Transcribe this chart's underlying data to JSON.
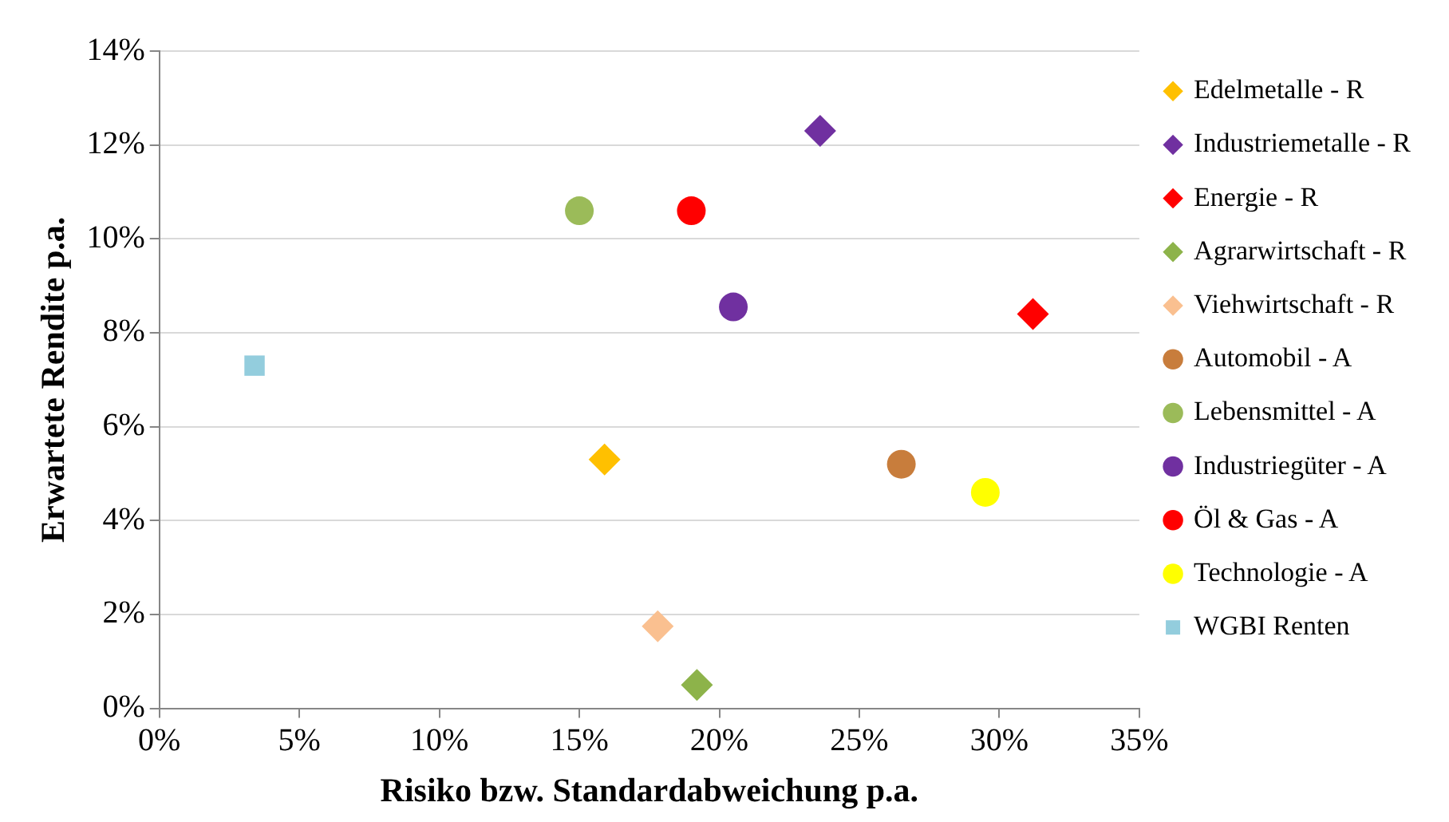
{
  "chart_data": {
    "type": "scatter",
    "xlabel": "Risiko bzw. Standardabweichung p.a.",
    "ylabel": "Erwartete Rendite p.a.",
    "xlim": [
      0,
      35
    ],
    "ylim": [
      0,
      14
    ],
    "xticks": [
      {
        "value": 0,
        "label": "0%"
      },
      {
        "value": 5,
        "label": "5%"
      },
      {
        "value": 10,
        "label": "10%"
      },
      {
        "value": 15,
        "label": "15%"
      },
      {
        "value": 20,
        "label": "20%"
      },
      {
        "value": 25,
        "label": "25%"
      },
      {
        "value": 30,
        "label": "30%"
      },
      {
        "value": 35,
        "label": "35%"
      }
    ],
    "yticks": [
      {
        "value": 0,
        "label": "0%"
      },
      {
        "value": 2,
        "label": "2%"
      },
      {
        "value": 4,
        "label": "4%"
      },
      {
        "value": 6,
        "label": "6%"
      },
      {
        "value": 8,
        "label": "8%"
      },
      {
        "value": 10,
        "label": "10%"
      },
      {
        "value": 12,
        "label": "12%"
      },
      {
        "value": 14,
        "label": "14%"
      }
    ],
    "grid": "y",
    "legend": "right",
    "series": [
      {
        "name": "Edelmetalle - R",
        "color": "#ffc000",
        "marker": "diamond",
        "x": [
          15.9
        ],
        "values": [
          5.3
        ]
      },
      {
        "name": "Industriemetalle - R",
        "color": "#7030a0",
        "marker": "diamond",
        "x": [
          23.6
        ],
        "values": [
          12.3
        ]
      },
      {
        "name": "Energie - R",
        "color": "#ff0000",
        "marker": "diamond",
        "x": [
          31.2
        ],
        "values": [
          8.4
        ]
      },
      {
        "name": "Agrarwirtschaft - R",
        "color": "#8db34a",
        "marker": "diamond",
        "x": [
          19.2
        ],
        "values": [
          0.5
        ]
      },
      {
        "name": "Viehwirtschaft - R",
        "color": "#fac090",
        "marker": "diamond",
        "x": [
          17.8
        ],
        "values": [
          1.75
        ]
      },
      {
        "name": "Automobil - A",
        "color": "#c87d3c",
        "marker": "circle",
        "x": [
          26.5
        ],
        "values": [
          5.2
        ]
      },
      {
        "name": "Lebensmittel - A",
        "color": "#9bbb59",
        "marker": "circle",
        "x": [
          15.0
        ],
        "values": [
          10.6
        ]
      },
      {
        "name": "Industriegüter - A",
        "color": "#7030a0",
        "marker": "circle",
        "x": [
          20.5
        ],
        "values": [
          8.55
        ]
      },
      {
        "name": "Öl & Gas - A",
        "color": "#ff0000",
        "marker": "circle",
        "x": [
          19.0
        ],
        "values": [
          10.6
        ]
      },
      {
        "name": "Technologie - A",
        "color": "#ffff00",
        "marker": "circle",
        "x": [
          29.5
        ],
        "values": [
          4.6
        ]
      },
      {
        "name": "WGBI Renten",
        "color": "#93cddd",
        "marker": "square",
        "x": [
          3.4
        ],
        "values": [
          7.3
        ]
      }
    ]
  }
}
